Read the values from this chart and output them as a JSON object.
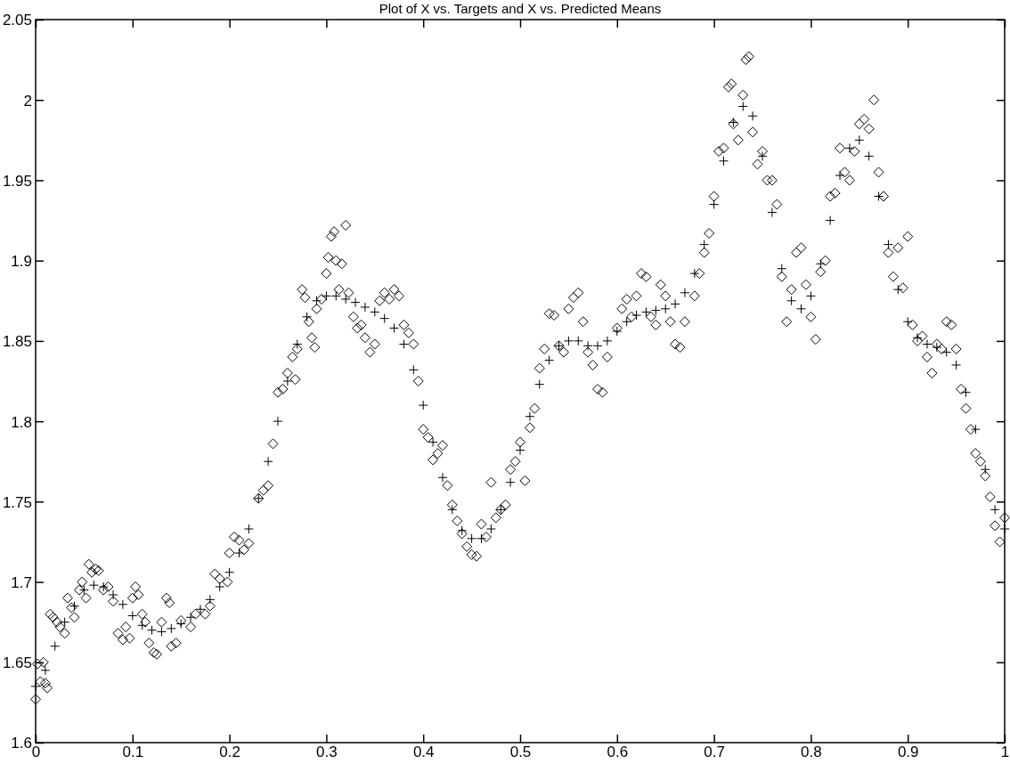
{
  "chart_data": {
    "type": "scatter",
    "title": "Plot of X vs. Targets and X vs. Predicted Means",
    "xlim": [
      0,
      1
    ],
    "ylim": [
      1.6,
      2.05
    ],
    "xticks": [
      0,
      0.1,
      0.2,
      0.3,
      0.4,
      0.5,
      0.6,
      0.7,
      0.8,
      0.9,
      1
    ],
    "yticks": [
      1.6,
      1.65,
      1.7,
      1.75,
      1.8,
      1.85,
      1.9,
      1.95,
      2,
      2.05
    ],
    "grid": false,
    "series": [
      {
        "color": "#000000",
        "marker": "diamond",
        "x": [
          0,
          0.002,
          0.005,
          0.008,
          0.01,
          0.012,
          0.015,
          0.018,
          0.022,
          0.025,
          0.03,
          0.033,
          0.037,
          0.04,
          0.045,
          0.048,
          0.052,
          0.055,
          0.058,
          0.062,
          0.065,
          0.07,
          0.075,
          0.08,
          0.085,
          0.09,
          0.093,
          0.097,
          0.1,
          0.103,
          0.106,
          0.11,
          0.113,
          0.117,
          0.122,
          0.125,
          0.13,
          0.135,
          0.138,
          0.14,
          0.145,
          0.15,
          0.16,
          0.165,
          0.175,
          0.18,
          0.185,
          0.19,
          0.198,
          0.2,
          0.205,
          0.21,
          0.215,
          0.22,
          0.23,
          0.235,
          0.24,
          0.245,
          0.25,
          0.255,
          0.26,
          0.265,
          0.268,
          0.27,
          0.275,
          0.278,
          0.282,
          0.285,
          0.288,
          0.29,
          0.295,
          0.3,
          0.302,
          0.305,
          0.308,
          0.31,
          0.313,
          0.316,
          0.32,
          0.323,
          0.328,
          0.332,
          0.336,
          0.34,
          0.345,
          0.35,
          0.355,
          0.36,
          0.365,
          0.37,
          0.375,
          0.38,
          0.385,
          0.39,
          0.395,
          0.4,
          0.405,
          0.41,
          0.415,
          0.42,
          0.425,
          0.43,
          0.435,
          0.44,
          0.445,
          0.45,
          0.455,
          0.46,
          0.465,
          0.47,
          0.475,
          0.48,
          0.485,
          0.49,
          0.495,
          0.5,
          0.505,
          0.51,
          0.515,
          0.52,
          0.525,
          0.53,
          0.535,
          0.54,
          0.545,
          0.55,
          0.555,
          0.56,
          0.565,
          0.57,
          0.575,
          0.58,
          0.585,
          0.59,
          0.6,
          0.605,
          0.61,
          0.615,
          0.62,
          0.625,
          0.63,
          0.635,
          0.64,
          0.645,
          0.65,
          0.655,
          0.66,
          0.665,
          0.67,
          0.68,
          0.685,
          0.69,
          0.695,
          0.7,
          0.705,
          0.71,
          0.715,
          0.718,
          0.72,
          0.725,
          0.73,
          0.733,
          0.736,
          0.74,
          0.745,
          0.75,
          0.755,
          0.76,
          0.765,
          0.77,
          0.775,
          0.78,
          0.785,
          0.79,
          0.795,
          0.8,
          0.805,
          0.81,
          0.815,
          0.82,
          0.825,
          0.83,
          0.835,
          0.84,
          0.845,
          0.85,
          0.855,
          0.86,
          0.865,
          0.87,
          0.875,
          0.88,
          0.885,
          0.89,
          0.895,
          0.9,
          0.905,
          0.91,
          0.915,
          0.92,
          0.925,
          0.93,
          0.935,
          0.94,
          0.945,
          0.95,
          0.955,
          0.96,
          0.965,
          0.97,
          0.975,
          0.98,
          0.985,
          0.99,
          0.995,
          1
        ],
        "values": [
          1.627,
          1.649,
          1.638,
          1.65,
          1.637,
          1.634,
          1.68,
          1.678,
          1.675,
          1.672,
          1.668,
          1.69,
          1.684,
          1.678,
          1.695,
          1.7,
          1.69,
          1.711,
          1.706,
          1.708,
          1.707,
          1.695,
          1.697,
          1.688,
          1.668,
          1.664,
          1.672,
          1.665,
          1.69,
          1.697,
          1.692,
          1.68,
          1.675,
          1.662,
          1.656,
          1.655,
          1.675,
          1.69,
          1.687,
          1.66,
          1.662,
          1.676,
          1.672,
          1.68,
          1.68,
          1.685,
          1.705,
          1.702,
          1.7,
          1.718,
          1.728,
          1.726,
          1.72,
          1.724,
          1.752,
          1.757,
          1.76,
          1.786,
          1.818,
          1.82,
          1.83,
          1.84,
          1.826,
          1.845,
          1.882,
          1.877,
          1.862,
          1.852,
          1.846,
          1.87,
          1.876,
          1.892,
          1.902,
          1.915,
          1.918,
          1.9,
          1.882,
          1.898,
          1.922,
          1.88,
          1.865,
          1.858,
          1.86,
          1.852,
          1.843,
          1.848,
          1.875,
          1.88,
          1.876,
          1.882,
          1.878,
          1.86,
          1.855,
          1.848,
          1.825,
          1.795,
          1.79,
          1.776,
          1.78,
          1.785,
          1.76,
          1.748,
          1.738,
          1.73,
          1.722,
          1.717,
          1.716,
          1.736,
          1.728,
          1.762,
          1.74,
          1.745,
          1.748,
          1.77,
          1.775,
          1.787,
          1.763,
          1.796,
          1.808,
          1.833,
          1.845,
          1.867,
          1.866,
          1.847,
          1.843,
          1.87,
          1.877,
          1.88,
          1.862,
          1.843,
          1.835,
          1.82,
          1.818,
          1.84,
          1.858,
          1.87,
          1.876,
          1.865,
          1.878,
          1.892,
          1.89,
          1.865,
          1.86,
          1.885,
          1.878,
          1.862,
          1.848,
          1.846,
          1.862,
          1.878,
          1.892,
          1.905,
          1.917,
          1.94,
          1.968,
          1.97,
          2.008,
          2.01,
          1.985,
          1.975,
          2.003,
          2.025,
          2.027,
          1.98,
          1.96,
          1.968,
          1.95,
          1.95,
          1.935,
          1.89,
          1.862,
          1.882,
          1.905,
          1.908,
          1.885,
          1.865,
          1.851,
          1.893,
          1.9,
          1.94,
          1.942,
          1.97,
          1.955,
          1.95,
          1.968,
          1.985,
          1.988,
          1.982,
          2,
          1.955,
          1.94,
          1.905,
          1.89,
          1.908,
          1.883,
          1.915,
          1.86,
          1.85,
          1.853,
          1.84,
          1.83,
          1.848,
          1.845,
          1.862,
          1.86,
          1.845,
          1.82,
          1.808,
          1.795,
          1.78,
          1.775,
          1.766,
          1.753,
          1.735,
          1.725,
          1.74
        ]
      },
      {
        "color": "#000000",
        "marker": "cross",
        "x": [
          0,
          0.01,
          0.02,
          0.03,
          0.04,
          0.05,
          0.06,
          0.07,
          0.08,
          0.09,
          0.1,
          0.11,
          0.12,
          0.13,
          0.14,
          0.15,
          0.16,
          0.17,
          0.18,
          0.19,
          0.2,
          0.21,
          0.22,
          0.23,
          0.24,
          0.25,
          0.26,
          0.27,
          0.28,
          0.29,
          0.3,
          0.31,
          0.32,
          0.33,
          0.34,
          0.35,
          0.36,
          0.37,
          0.38,
          0.39,
          0.4,
          0.41,
          0.42,
          0.43,
          0.44,
          0.45,
          0.46,
          0.47,
          0.48,
          0.49,
          0.5,
          0.51,
          0.52,
          0.53,
          0.54,
          0.55,
          0.56,
          0.57,
          0.58,
          0.59,
          0.6,
          0.61,
          0.62,
          0.63,
          0.64,
          0.65,
          0.66,
          0.67,
          0.68,
          0.69,
          0.7,
          0.71,
          0.72,
          0.73,
          0.74,
          0.75,
          0.76,
          0.77,
          0.78,
          0.79,
          0.8,
          0.81,
          0.82,
          0.83,
          0.84,
          0.85,
          0.86,
          0.87,
          0.88,
          0.89,
          0.9,
          0.91,
          0.92,
          0.93,
          0.94,
          0.95,
          0.96,
          0.97,
          0.98,
          0.99,
          1
        ],
        "values": [
          1.635,
          1.645,
          1.66,
          1.675,
          1.685,
          1.695,
          1.698,
          1.697,
          1.692,
          1.686,
          1.679,
          1.673,
          1.67,
          1.669,
          1.671,
          1.674,
          1.678,
          1.683,
          1.689,
          1.697,
          1.706,
          1.718,
          1.733,
          1.752,
          1.775,
          1.8,
          1.825,
          1.848,
          1.865,
          1.875,
          1.878,
          1.878,
          1.876,
          1.874,
          1.871,
          1.868,
          1.864,
          1.858,
          1.848,
          1.832,
          1.81,
          1.787,
          1.765,
          1.745,
          1.732,
          1.727,
          1.727,
          1.733,
          1.745,
          1.762,
          1.782,
          1.803,
          1.823,
          1.838,
          1.847,
          1.85,
          1.85,
          1.847,
          1.847,
          1.85,
          1.856,
          1.862,
          1.866,
          1.868,
          1.869,
          1.87,
          1.873,
          1.88,
          1.892,
          1.91,
          1.935,
          1.962,
          1.986,
          1.996,
          1.99,
          1.965,
          1.93,
          1.895,
          1.875,
          1.87,
          1.878,
          1.898,
          1.925,
          1.953,
          1.97,
          1.975,
          1.965,
          1.94,
          1.91,
          1.882,
          1.862,
          1.852,
          1.848,
          1.846,
          1.843,
          1.835,
          1.818,
          1.795,
          1.77,
          1.745,
          1.733
        ]
      }
    ]
  }
}
